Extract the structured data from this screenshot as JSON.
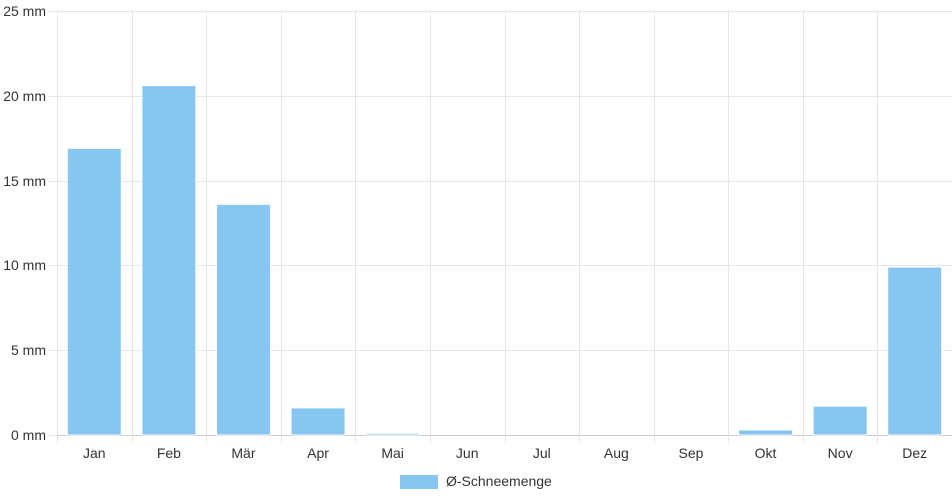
{
  "chart_data": {
    "type": "bar",
    "categories": [
      "Jan",
      "Feb",
      "Mär",
      "Apr",
      "Mai",
      "Jun",
      "Jul",
      "Aug",
      "Sep",
      "Okt",
      "Nov",
      "Dez"
    ],
    "series": [
      {
        "name": "Ø-Schneemenge",
        "values": [
          16.9,
          20.6,
          13.6,
          1.6,
          0.1,
          0,
          0,
          0,
          0,
          0.3,
          1.7,
          9.9
        ],
        "color": "#88c6f2"
      }
    ],
    "ylim": [
      0,
      25
    ],
    "yticks": [
      0,
      5,
      10,
      15,
      20,
      25
    ],
    "ytick_labels": [
      "0 mm",
      "5 mm",
      "10 mm",
      "15 mm",
      "20 mm",
      "25 mm"
    ],
    "grid": true,
    "legend_position": "bottom-center",
    "colors": {
      "grid": "#e6e6e6",
      "axis": "#cccccc",
      "text": "#333333"
    }
  }
}
